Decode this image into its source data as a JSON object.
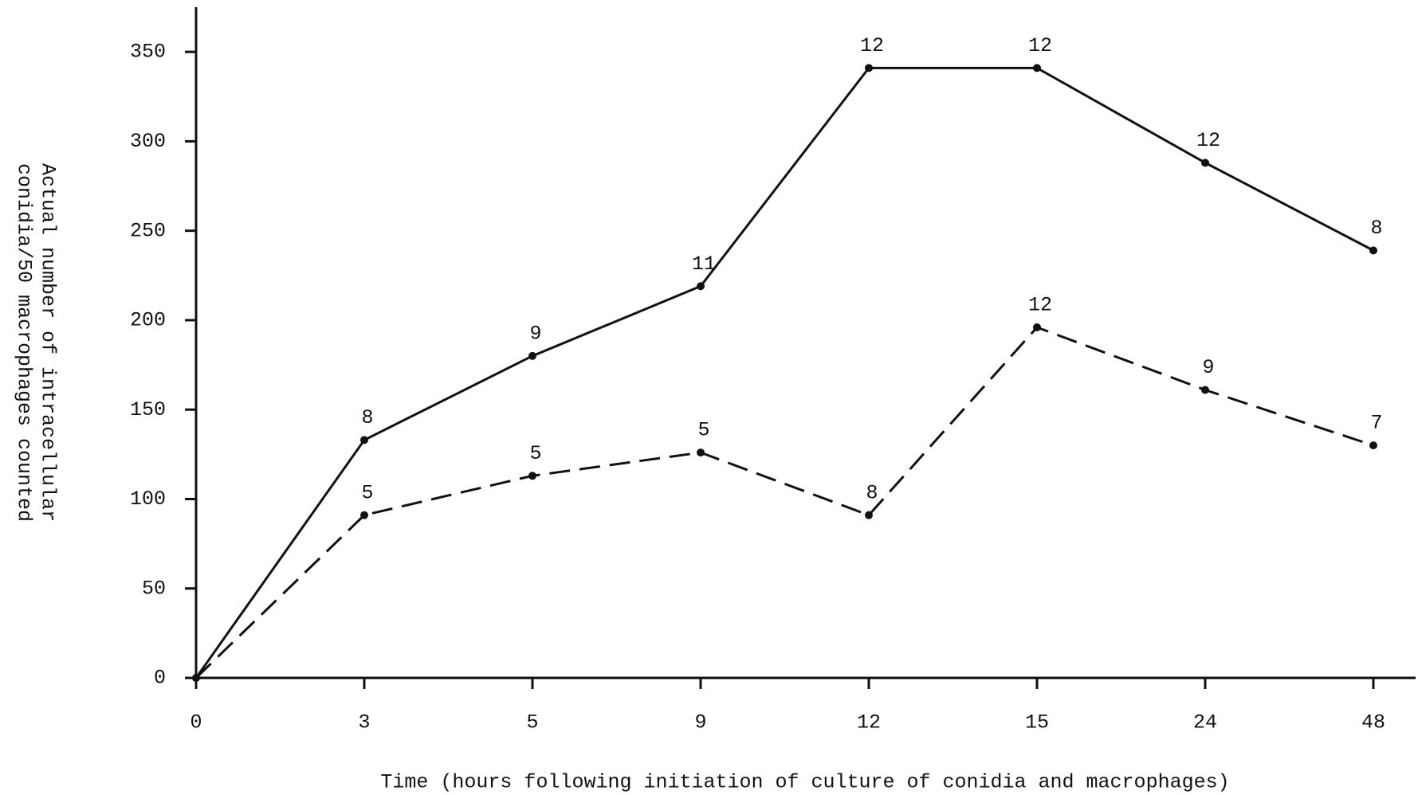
{
  "chart_data": {
    "type": "line",
    "ylabel": [
      "Actual number of intracellular",
      "conidia/50 macrophages counted"
    ],
    "xlabel": "Time (hours following initiation of culture of conidia and macrophages)",
    "categories": [
      "0",
      "3",
      "5",
      "9",
      "12",
      "15",
      "24",
      "48"
    ],
    "series": [
      {
        "color": "#111111",
        "dash": "solid",
        "values": [
          0,
          133,
          180,
          219,
          341,
          341,
          288,
          239
        ],
        "point_labels": [
          null,
          "8",
          "9",
          "11",
          "12",
          "12",
          "12",
          "8"
        ]
      },
      {
        "color": "#111111",
        "dash": "dashed",
        "values": [
          0,
          91,
          113,
          126,
          91,
          196,
          161,
          130
        ],
        "point_labels": [
          null,
          "5",
          "5",
          "5",
          "8",
          "12",
          "9",
          "7"
        ]
      }
    ],
    "ylim": [
      0,
      375
    ],
    "yticks": [
      0,
      50,
      100,
      150,
      200,
      250,
      300,
      350
    ]
  }
}
